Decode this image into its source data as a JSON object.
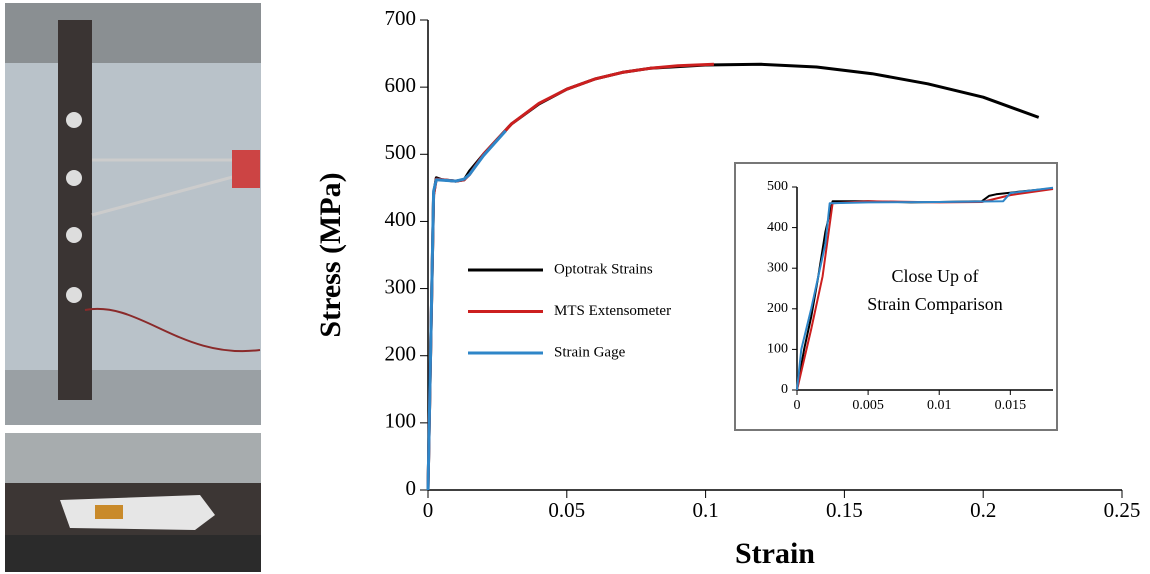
{
  "chart_data": [
    {
      "type": "line",
      "xlabel": "Strain",
      "ylabel": "Stress (MPa)",
      "xlim": [
        0,
        0.25
      ],
      "xticks": [
        0,
        0.05,
        0.1,
        0.15,
        0.2,
        0.25
      ],
      "ylim": [
        0,
        700
      ],
      "yticks": [
        0,
        100,
        200,
        300,
        400,
        500,
        600,
        700
      ],
      "legend": "center-left",
      "series": [
        {
          "name": "Optotrak Strains",
          "color": "#000000",
          "x": [
            0,
            0.002,
            0.003,
            0.005,
            0.01,
            0.013,
            0.015,
            0.02,
            0.03,
            0.04,
            0.05,
            0.06,
            0.07,
            0.08,
            0.1,
            0.12,
            0.14,
            0.16,
            0.18,
            0.2,
            0.22
          ],
          "values": [
            0,
            440,
            465,
            462,
            460,
            462,
            475,
            500,
            545,
            575,
            597,
            612,
            622,
            628,
            633,
            634,
            630,
            620,
            605,
            585,
            555
          ]
        },
        {
          "name": "MTS Extensometer",
          "color": "#cc1f1f",
          "x": [
            0,
            0.002,
            0.003,
            0.01,
            0.013,
            0.015,
            0.02,
            0.03,
            0.04,
            0.05,
            0.06,
            0.07,
            0.08,
            0.09,
            0.103
          ],
          "values": [
            0,
            440,
            463,
            460,
            462,
            470,
            500,
            545,
            576,
            597,
            612,
            622,
            628,
            632,
            634
          ]
        },
        {
          "name": "Strain Gage",
          "color": "#2e86c8",
          "x": [
            0,
            0.002,
            0.003,
            0.01,
            0.013,
            0.015,
            0.02,
            0.028
          ],
          "values": [
            0,
            445,
            462,
            460,
            463,
            470,
            498,
            535
          ]
        }
      ]
    },
    {
      "type": "line",
      "annotation": [
        "Close Up of",
        "Strain Comparison"
      ],
      "xlim": [
        0,
        0.018
      ],
      "xticks": [
        0,
        0.005,
        0.01,
        0.015
      ],
      "ylim": [
        0,
        500
      ],
      "yticks": [
        0,
        100,
        200,
        300,
        400,
        500
      ],
      "series": [
        {
          "color": "#000000",
          "x": [
            0,
            0.0005,
            0.001,
            0.0015,
            0.002,
            0.0025,
            0.003,
            0.005,
            0.008,
            0.01,
            0.013,
            0.0135,
            0.014,
            0.016,
            0.018
          ],
          "values": [
            0,
            100,
            180,
            280,
            390,
            465,
            465,
            465,
            462,
            463,
            465,
            478,
            482,
            490,
            497
          ]
        },
        {
          "color": "#cc1f1f",
          "x": [
            0,
            0.001,
            0.0018,
            0.0025,
            0.005,
            0.01,
            0.013,
            0.015,
            0.018
          ],
          "values": [
            0,
            150,
            280,
            460,
            465,
            462,
            463,
            480,
            495
          ]
        },
        {
          "color": "#2e86c8",
          "x": [
            0,
            0.0003,
            0.001,
            0.002,
            0.0023,
            0.005,
            0.01,
            0.0145,
            0.015,
            0.018
          ],
          "values": [
            0,
            100,
            200,
            360,
            460,
            462,
            463,
            465,
            485,
            498
          ]
        }
      ]
    }
  ]
}
